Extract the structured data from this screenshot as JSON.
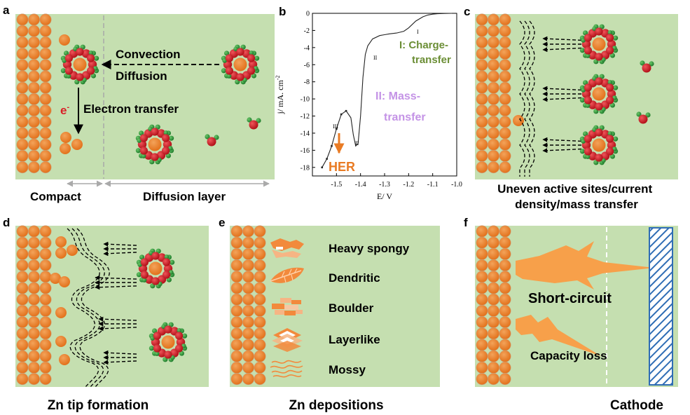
{
  "panels": {
    "a": {
      "letter": "a",
      "convection": "Convection",
      "diffusion": "Diffusion",
      "electron_symbol": "e",
      "electron_sup": "-",
      "electron_transfer": "Electron transfer",
      "compact": "Compact",
      "diffusion_layer": "Diffusion layer"
    },
    "b": {
      "letter": "b",
      "ylabel": "j/ mA. cm",
      "ylabel_sup": "-2",
      "xlabel": "E/ V",
      "charge_1": "I: Charge-",
      "charge_2": "transfer",
      "mass_1": "II: Mass-",
      "mass_2": "transfer",
      "her": "HER",
      "roman_i": "I",
      "roman_ii_a": "II",
      "roman_ii_b": "II",
      "roman_iii": "III"
    },
    "c": {
      "letter": "c",
      "caption_1": "Uneven active sites/current",
      "caption_2": "density/mass transfer"
    },
    "d": {
      "letter": "d",
      "caption": "Zn tip formation"
    },
    "e": {
      "letter": "e",
      "caption": "Zn depositions",
      "morphologies": [
        "Heavy spongy",
        "Dendritic",
        "Boulder",
        "Layerlike",
        "Mossy"
      ]
    },
    "f": {
      "letter": "f",
      "short_circuit": "Short-circuit",
      "capacity_loss": "Capacity loss",
      "cathode": "Cathode"
    }
  },
  "chart_data": {
    "type": "line",
    "title": "",
    "xlabel": "E/ V",
    "ylabel": "j/ mA. cm-2",
    "xlim": [
      -1.6,
      -1.0
    ],
    "ylim": [
      -19,
      0
    ],
    "x_ticks": [
      "-1.5",
      "-1.4",
      "-1.3",
      "-1.2",
      "-1.1",
      "-1.0"
    ],
    "y_ticks": [
      "0",
      "-2",
      "-4",
      "-6",
      "-8",
      "-10",
      "-12",
      "-14",
      "-16",
      "-18"
    ],
    "series": [
      {
        "x": [
          -1.56,
          -1.54,
          -1.52,
          -1.5,
          -1.48,
          -1.46,
          -1.44,
          -1.43,
          -1.42,
          -1.41,
          -1.4,
          -1.39,
          -1.38,
          -1.37,
          -1.35,
          -1.32,
          -1.3,
          -1.28,
          -1.25,
          -1.22,
          -1.2,
          -1.17,
          -1.14,
          -1.12,
          -1.1,
          -1.08,
          -1.05,
          -1.02
        ],
        "y": [
          -18.0,
          -17.0,
          -15.5,
          -13.5,
          -11.8,
          -11.4,
          -12.2,
          -14.2,
          -15.5,
          -15.2,
          -12.0,
          -7.5,
          -4.8,
          -3.8,
          -3.0,
          -2.6,
          -2.5,
          -2.4,
          -2.3,
          -2.1,
          -1.7,
          -0.9,
          -0.4,
          -0.2,
          -0.1,
          -0.05,
          -0.02,
          0.0
        ]
      }
    ],
    "colors": {
      "green_bg": "#c5dfb0",
      "zinc": "#e97b24",
      "ion_red": "#d91e26",
      "ligand_green": "#2e9a3a",
      "mass_label": "#c493e6",
      "charge_label": "#6b8e35",
      "cathode_blue": "#2f6db5"
    }
  }
}
